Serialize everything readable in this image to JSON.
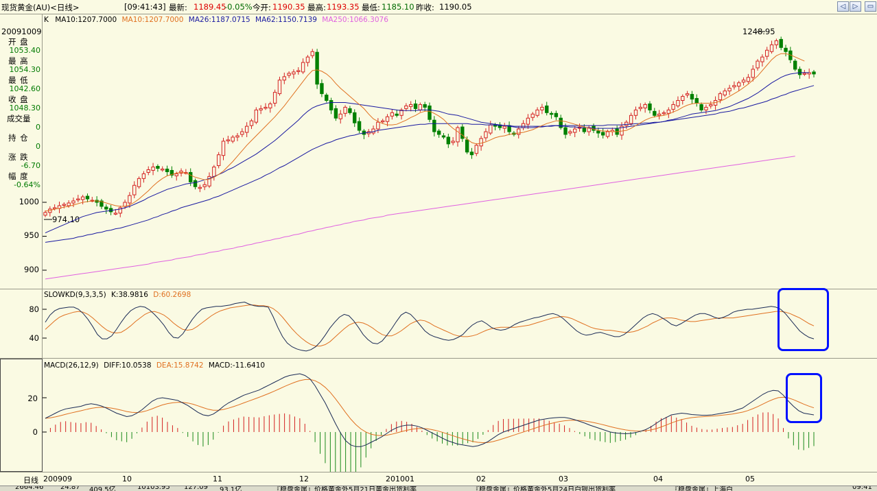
{
  "window": {
    "title": "现货黄金(AU)<日线>",
    "quote": {
      "time": "[09:41:43]",
      "latest_label": "最新:",
      "latest": "1189.45",
      "change": "-0.05%",
      "open_label": "今开:",
      "open": "1190.35",
      "high_label": "最高:",
      "high": "1193.35",
      "low_label": "最低:",
      "low": "1185.10",
      "prev_label": "昨收:",
      "prev": "1190.05"
    },
    "buttons": [
      "◁",
      "▷",
      "▭",
      "✕"
    ]
  },
  "info_panel": {
    "date": "20091009",
    "open_label": "开 盘",
    "open": "1053.40",
    "high_label": "最 高",
    "high": "1054.30",
    "low_label": "最 低",
    "low": "1042.60",
    "close_label": "收 盘",
    "close": "1048.30",
    "volume_label": "成交量",
    "volume": "0",
    "position_label": "持 仓",
    "position": "0",
    "change_label": "涨 跌",
    "change": "-6.70",
    "pct_label": "幅 度",
    "pct": "-0.64%"
  },
  "chart_data": [
    {
      "type": "candlestick",
      "legend": {
        "k": "K",
        "ma10_a": "MA10:1207.7000",
        "ma10_b": "MA10:1207.7000",
        "ma26": "MA26:1187.0715",
        "ma62": "MA62:1150.7139",
        "ma250": "MA250:1066.3076"
      },
      "y_ticks": [
        "1000",
        "950",
        "900"
      ],
      "annotations": {
        "high": "1248.95",
        "low": "974.10"
      },
      "x_labels": [
        "200909",
        "10",
        "11",
        "12",
        "201001",
        "02",
        "03",
        "04",
        "05"
      ],
      "colors": {
        "up": "#d42020",
        "down": "#008000",
        "ma10": "#e07020",
        "ma26": "#1818a0",
        "ma62": "#1818a0",
        "ma250": "#e060e0"
      },
      "close": [
        985,
        990,
        992,
        995,
        997,
        999,
        1002,
        1005,
        1008,
        1005,
        1003,
        1000,
        994,
        990,
        986,
        984,
        992,
        1000,
        1010,
        1025,
        1035,
        1042,
        1048,
        1052,
        1050,
        1049,
        1045,
        1040,
        1042,
        1046,
        1044,
        1030,
        1023,
        1022,
        1026,
        1038,
        1052,
        1070,
        1090,
        1092,
        1096,
        1098,
        1104,
        1112,
        1120,
        1136,
        1138,
        1140,
        1145,
        1162,
        1180,
        1185,
        1190,
        1192,
        1194,
        1206,
        1214,
        1222,
        1174,
        1160,
        1150,
        1136,
        1124,
        1130,
        1140,
        1132,
        1117,
        1106,
        1100,
        1104,
        1108,
        1118,
        1120,
        1126,
        1132,
        1128,
        1136,
        1142,
        1144,
        1138,
        1144,
        1140,
        1122,
        1104,
        1100,
        1096,
        1086,
        1090,
        1110,
        1094,
        1074,
        1070,
        1084,
        1094,
        1104,
        1114,
        1112,
        1110,
        1112,
        1104,
        1100,
        1108,
        1116,
        1124,
        1130,
        1136,
        1140,
        1132,
        1130,
        1126,
        1110,
        1100,
        1104,
        1108,
        1111,
        1104,
        1110,
        1106,
        1102,
        1099,
        1104,
        1106,
        1100,
        1112,
        1118,
        1128,
        1136,
        1140,
        1144,
        1136,
        1128,
        1130,
        1132,
        1136,
        1144,
        1150,
        1156,
        1160,
        1152,
        1146,
        1136,
        1140,
        1144,
        1150,
        1160,
        1164,
        1168,
        1172,
        1176,
        1180,
        1184,
        1196,
        1208,
        1214,
        1224,
        1232,
        1238,
        1228,
        1222,
        1210,
        1196,
        1188,
        1190,
        1191,
        1189
      ],
      "ma10": [
        987,
        988,
        990,
        991,
        993,
        994,
        996,
        998,
        1000,
        1001,
        1002,
        1002,
        1001,
        999,
        997,
        995,
        994,
        994,
        996,
        1000,
        1005,
        1011,
        1017,
        1024,
        1030,
        1035,
        1039,
        1041,
        1043,
        1044,
        1043,
        1040,
        1037,
        1035,
        1033,
        1034,
        1037,
        1041,
        1046,
        1053,
        1060,
        1068,
        1076,
        1084,
        1091,
        1098,
        1105,
        1112,
        1119,
        1126,
        1134,
        1142,
        1151,
        1160,
        1169,
        1178,
        1187,
        1194,
        1195,
        1193,
        1189,
        1183,
        1175,
        1168,
        1162,
        1156,
        1150,
        1144,
        1138,
        1130,
        1123,
        1119,
        1116,
        1114,
        1114,
        1115,
        1118,
        1121,
        1125,
        1128,
        1132,
        1134,
        1134,
        1131,
        1127,
        1122,
        1115,
        1109,
        1104,
        1099,
        1093,
        1088,
        1086,
        1087,
        1089,
        1092,
        1095,
        1097,
        1098,
        1100,
        1101,
        1102,
        1103,
        1105,
        1107,
        1110,
        1113,
        1116,
        1118,
        1120,
        1120,
        1119,
        1117,
        1115,
        1113,
        1111,
        1109,
        1108,
        1106,
        1105,
        1105,
        1104,
        1104,
        1105,
        1106,
        1109,
        1113,
        1117,
        1121,
        1124,
        1126,
        1127,
        1128,
        1130,
        1133,
        1136,
        1140,
        1143,
        1145,
        1146,
        1146,
        1146,
        1146,
        1147,
        1149,
        1152,
        1156,
        1160,
        1164,
        1169,
        1174,
        1180,
        1186,
        1194,
        1202,
        1210,
        1216,
        1219,
        1219,
        1217,
        1214,
        1211,
        1208
      ],
      "ma26": [
        955,
        958,
        961,
        964,
        967,
        970,
        973,
        976,
        979,
        981,
        983,
        985,
        986,
        987,
        988,
        989,
        990,
        992,
        994,
        997,
        1000,
        1003,
        1007,
        1010,
        1013,
        1016,
        1019,
        1021,
        1023,
        1025,
        1027,
        1028,
        1029,
        1031,
        1033,
        1035,
        1038,
        1041,
        1044,
        1048,
        1051,
        1055,
        1059,
        1063,
        1067,
        1071,
        1076,
        1081,
        1086,
        1091,
        1097,
        1103,
        1109,
        1115,
        1121,
        1128,
        1134,
        1139,
        1142,
        1144,
        1146,
        1147,
        1147,
        1147,
        1147,
        1146,
        1145,
        1144,
        1143,
        1142,
        1141,
        1140,
        1139,
        1138,
        1137,
        1136,
        1135,
        1135,
        1135,
        1135,
        1136,
        1136,
        1136,
        1135,
        1134,
        1132,
        1130,
        1129,
        1128,
        1126,
        1124,
        1122,
        1120,
        1118,
        1117,
        1116,
        1115,
        1114,
        1113,
        1112,
        1111,
        1110,
        1110,
        1110,
        1110,
        1111,
        1111,
        1112,
        1112,
        1113,
        1112,
        1112,
        1111,
        1111,
        1110,
        1110,
        1110,
        1109,
        1109,
        1109,
        1109,
        1109,
        1109,
        1110,
        1111,
        1112,
        1113,
        1114,
        1115,
        1116,
        1117,
        1118,
        1119,
        1121,
        1122,
        1124,
        1126,
        1128,
        1130,
        1131,
        1132,
        1133,
        1134,
        1135,
        1137,
        1139,
        1141,
        1144,
        1147,
        1150,
        1153,
        1157,
        1161,
        1166,
        1171,
        1176,
        1180,
        1184,
        1187,
        1189,
        1190,
        1191,
        1191,
        1191
      ],
      "ma62": [
        941,
        942,
        943,
        944,
        945,
        946,
        947,
        949,
        950,
        952,
        953,
        955,
        956,
        958,
        959,
        961,
        962,
        964,
        966,
        968,
        970,
        972,
        974,
        977,
        979,
        982,
        984,
        987,
        989,
        992,
        994,
        996,
        998,
        1000,
        1002,
        1004,
        1007,
        1009,
        1012,
        1015,
        1018,
        1021,
        1024,
        1027,
        1030,
        1033,
        1036,
        1040,
        1043,
        1047,
        1051,
        1054,
        1058,
        1062,
        1066,
        1070,
        1074,
        1078,
        1081,
        1084,
        1087,
        1089,
        1092,
        1094,
        1096,
        1098,
        1099,
        1101,
        1102,
        1103,
        1104,
        1106,
        1107,
        1108,
        1109,
        1110,
        1111,
        1112,
        1113,
        1114,
        1115,
        1115,
        1116,
        1116,
        1116,
        1116,
        1116,
        1116,
        1116,
        1116,
        1116,
        1115,
        1115,
        1115,
        1114,
        1114,
        1114,
        1113,
        1113,
        1113,
        1112,
        1112,
        1112,
        1112,
        1112,
        1112,
        1112,
        1112,
        1113,
        1113,
        1113,
        1113,
        1113,
        1113,
        1113,
        1113,
        1113,
        1113,
        1113,
        1113,
        1114,
        1114,
        1114,
        1114,
        1115,
        1115,
        1116,
        1116,
        1117,
        1117,
        1118,
        1118,
        1119,
        1120,
        1121,
        1122,
        1123,
        1124,
        1125,
        1126,
        1127,
        1128,
        1129,
        1130,
        1132,
        1133,
        1134,
        1136,
        1138,
        1139,
        1141,
        1143,
        1145,
        1147,
        1149,
        1152,
        1154,
        1157,
        1159,
        1162,
        1164,
        1166,
        1168,
        1170,
        1172
      ],
      "ma250": [
        887,
        888,
        889,
        890,
        891,
        892,
        893,
        894,
        895,
        896,
        897,
        898,
        899,
        900,
        901,
        902,
        903,
        904,
        905,
        906,
        907,
        908,
        909,
        911,
        912,
        913,
        914,
        915,
        917,
        918,
        919,
        920,
        922,
        923,
        924,
        926,
        927,
        928,
        930,
        931,
        932,
        934,
        935,
        937,
        938,
        940,
        941,
        943,
        944,
        946,
        947,
        949,
        950,
        952,
        953,
        955,
        957,
        958,
        960,
        961,
        963,
        964,
        966,
        967,
        969,
        970,
        972,
        973,
        974,
        976,
        977,
        978,
        979,
        981,
        982,
        983,
        984,
        985,
        986,
        987,
        988,
        989,
        990,
        991,
        992,
        993,
        994,
        995,
        996,
        997,
        998,
        999,
        1000,
        1001,
        1002,
        1003,
        1004,
        1005,
        1006,
        1007,
        1008,
        1009,
        1010,
        1011,
        1012,
        1013,
        1014,
        1015,
        1016,
        1017,
        1018,
        1019,
        1020,
        1021,
        1022,
        1023,
        1024,
        1025,
        1026,
        1027,
        1028,
        1029,
        1030,
        1031,
        1032,
        1033,
        1034,
        1035,
        1036,
        1037,
        1038,
        1039,
        1040,
        1041,
        1042,
        1043,
        1044,
        1045,
        1046,
        1047,
        1048,
        1049,
        1050,
        1051,
        1052,
        1053,
        1054,
        1055,
        1056,
        1057,
        1058,
        1059,
        1060,
        1061,
        1062,
        1063,
        1064,
        1065,
        1066,
        1067,
        1068
      ]
    },
    {
      "type": "line",
      "legend": {
        "name": "SLOWKD(9,3,3,5)",
        "k": "K:38.9816",
        "d": "D:60.2698"
      },
      "y_ticks": [
        "80",
        "40"
      ],
      "k": [
        62,
        72,
        78,
        81,
        82,
        83,
        83,
        80,
        74,
        66,
        56,
        45,
        39,
        39,
        43,
        52,
        62,
        71,
        78,
        82,
        84,
        83,
        79,
        73,
        66,
        58,
        48,
        41,
        40,
        46,
        56,
        66,
        74,
        80,
        82,
        83,
        84,
        84,
        85,
        86,
        88,
        89,
        90,
        87,
        85,
        84,
        84,
        83,
        70,
        55,
        42,
        33,
        28,
        25,
        23,
        22,
        24,
        28,
        35,
        44,
        54,
        62,
        69,
        73,
        71,
        64,
        55,
        45,
        38,
        33,
        32,
        36,
        44,
        53,
        63,
        72,
        76,
        73,
        66,
        58,
        50,
        45,
        42,
        40,
        38,
        37,
        38,
        41,
        45,
        52,
        58,
        62,
        64,
        60,
        55,
        52,
        51,
        52,
        55,
        59,
        62,
        64,
        66,
        68,
        69,
        71,
        73,
        74,
        72,
        68,
        62,
        56,
        50,
        46,
        44,
        45,
        47,
        48,
        46,
        44,
        42,
        42,
        45,
        50,
        56,
        62,
        68,
        72,
        74,
        72,
        68,
        64,
        59,
        57,
        60,
        64,
        68,
        72,
        74,
        74,
        72,
        69,
        67,
        69,
        72,
        76,
        78,
        79,
        80,
        80,
        81,
        82,
        83,
        84,
        83,
        80,
        74,
        66,
        58,
        50,
        45,
        41,
        39
      ],
      "d": [
        52,
        58,
        64,
        69,
        72,
        74,
        76,
        77,
        76,
        73,
        68,
        62,
        56,
        51,
        48,
        47,
        48,
        52,
        57,
        63,
        68,
        73,
        76,
        77,
        75,
        72,
        67,
        61,
        56,
        52,
        51,
        52,
        56,
        61,
        66,
        71,
        75,
        78,
        80,
        82,
        83,
        84,
        85,
        86,
        86,
        85,
        85,
        84,
        81,
        76,
        69,
        61,
        53,
        46,
        40,
        35,
        31,
        29,
        29,
        31,
        35,
        41,
        47,
        53,
        58,
        61,
        62,
        61,
        58,
        54,
        49,
        45,
        43,
        43,
        46,
        50,
        55,
        60,
        63,
        65,
        64,
        61,
        57,
        54,
        51,
        48,
        45,
        43,
        42,
        42,
        43,
        45,
        48,
        51,
        53,
        54,
        55,
        55,
        55,
        55,
        56,
        57,
        58,
        60,
        62,
        64,
        66,
        68,
        69,
        70,
        69,
        67,
        64,
        61,
        58,
        55,
        53,
        52,
        51,
        51,
        50,
        49,
        48,
        48,
        49,
        51,
        54,
        57,
        61,
        64,
        67,
        68,
        68,
        67,
        65,
        64,
        63,
        63,
        64,
        65,
        66,
        67,
        68,
        68,
        68,
        68,
        69,
        70,
        71,
        72,
        73,
        74,
        75,
        76,
        77,
        77,
        76,
        74,
        71,
        68,
        64,
        60,
        57
      ]
    },
    {
      "type": "line+bar",
      "legend": {
        "name": "MACD(26,12,9)",
        "diff": "DIFF:10.0538",
        "dea": "DEA:15.8742",
        "macd": "MACD:-11.6410"
      },
      "y_ticks": [
        "20",
        "0"
      ],
      "diff": [
        8,
        9.5,
        11,
        12.5,
        13.5,
        14,
        14.5,
        15,
        16,
        16.5,
        16,
        15.2,
        14,
        12.5,
        11,
        10,
        9,
        9.5,
        11,
        13,
        15.5,
        18,
        19.5,
        20,
        19.5,
        19,
        18.5,
        17,
        15.5,
        13.5,
        11.5,
        10,
        9.5,
        10.5,
        12.5,
        15,
        17,
        18.5,
        20,
        21.5,
        22.5,
        23.5,
        24.5,
        26,
        27.5,
        29,
        30.5,
        32,
        33,
        33.5,
        34,
        33,
        31,
        27,
        22,
        17,
        11,
        5,
        -0.5,
        -5,
        -7.5,
        -8.5,
        -8.5,
        -7.5,
        -6,
        -4.5,
        -3,
        -1,
        1,
        2.5,
        3.5,
        4,
        4,
        3.5,
        2.5,
        1,
        -0.5,
        -2,
        -3.5,
        -5,
        -6,
        -7,
        -7.5,
        -8,
        -8.5,
        -8,
        -7,
        -5.5,
        -3.5,
        -1.5,
        0,
        1,
        2,
        3,
        4,
        5,
        6,
        7,
        7.5,
        8,
        8.3,
        8.5,
        8.5,
        8,
        7.2,
        6.2,
        5.2,
        4,
        3,
        2,
        1,
        0,
        -0.5,
        -0.8,
        -1,
        -0.8,
        -0.3,
        0.5,
        1.5,
        3,
        5,
        7,
        8.5,
        10,
        10.5,
        11,
        10.7,
        10.2,
        10,
        9.8,
        9.8,
        10,
        10.5,
        11,
        11.5,
        12,
        13,
        14,
        16,
        18,
        20,
        22,
        23.5,
        24.3,
        24,
        21.5,
        18,
        15,
        12.5,
        11,
        10.5,
        10
      ]
    }
  ],
  "x_axis": {
    "label": "日线",
    "ticks": [
      "200909",
      "10",
      "11",
      "12",
      "201001",
      "02",
      "03",
      "04",
      "05"
    ]
  },
  "status_bar": {
    "items": [
      "2664.46",
      "24.87",
      "409.5亿",
      "10103.95",
      "127.09",
      "93.1亿",
      "『稳盘金属』价格黄金外5月21日黄金出货利率",
      "『稳盘金属』价格黄金外5月24日白银出货利率",
      "『稳盘金属』上海白",
      "09:41"
    ]
  }
}
